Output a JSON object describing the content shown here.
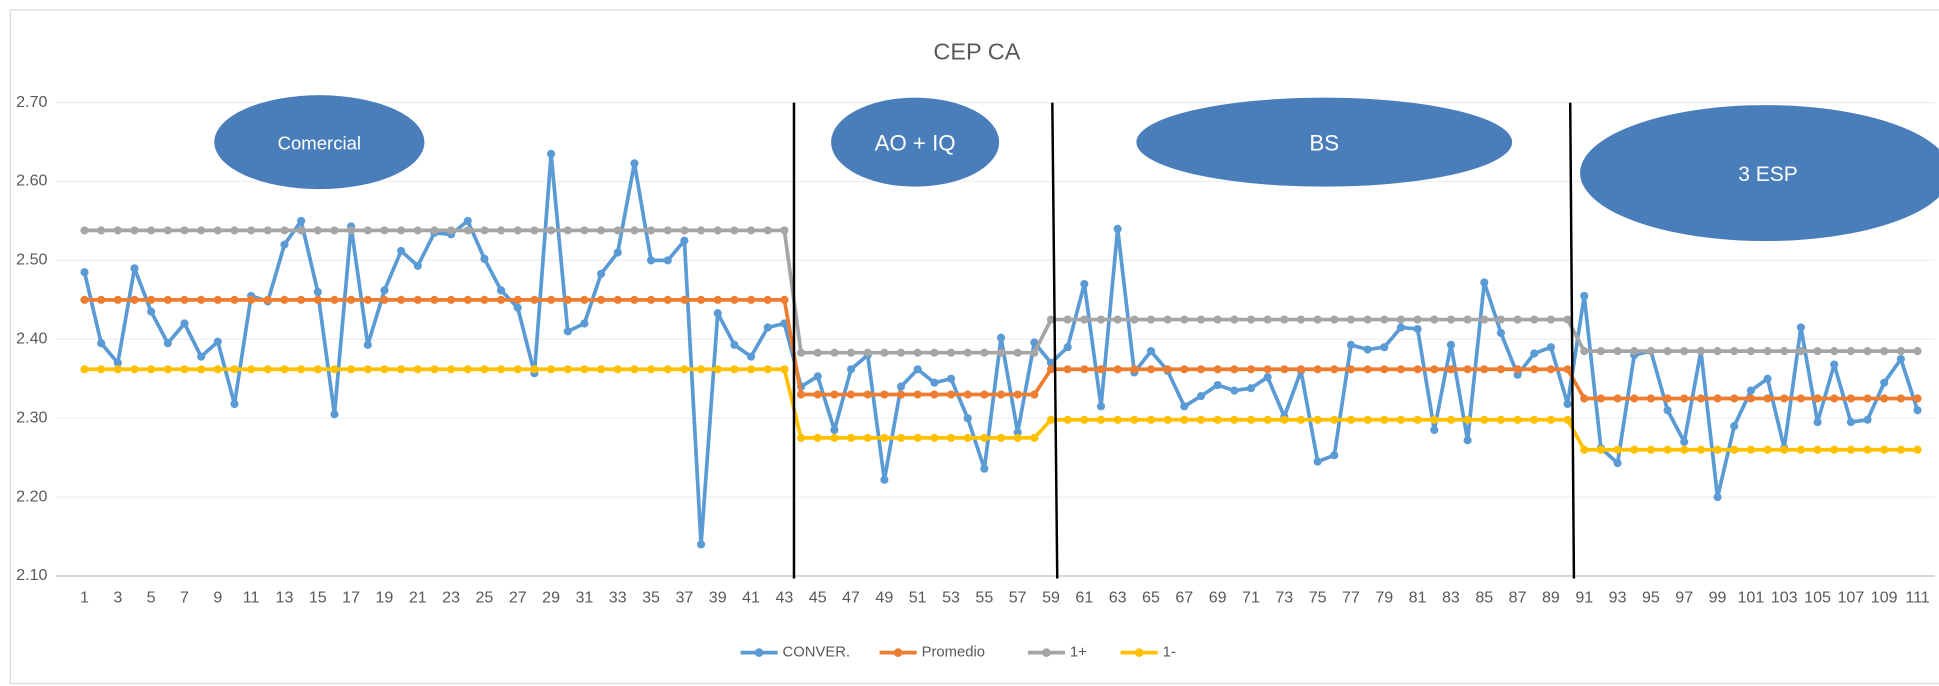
{
  "chart_data": {
    "type": "line",
    "title": "CEP CA",
    "categories": [
      1,
      null,
      3,
      null,
      5,
      null,
      7,
      null,
      9,
      null,
      11,
      null,
      13,
      null,
      15,
      null,
      17,
      null,
      19,
      null,
      21,
      null,
      23,
      null,
      25,
      null,
      27,
      null,
      29,
      null,
      31,
      null,
      33,
      null,
      35,
      null,
      37,
      null,
      39,
      null,
      41,
      null,
      43,
      null,
      45,
      null,
      47,
      null,
      49,
      null,
      51,
      null,
      53,
      null,
      55,
      null,
      57,
      null,
      59,
      null,
      61,
      null,
      63,
      null,
      65,
      null,
      67,
      null,
      69,
      null,
      71,
      null,
      73,
      null,
      75,
      null,
      77,
      null,
      79,
      null,
      81,
      null,
      83,
      null,
      85,
      null,
      87,
      null,
      89,
      null,
      91,
      null,
      93,
      null,
      95,
      null,
      97,
      null,
      99,
      null,
      101,
      null,
      103,
      null,
      105,
      null,
      107,
      null,
      109,
      null,
      111
    ],
    "series": [
      {
        "name": "CONVER.",
        "color": "#5b9bd5",
        "values": [
          2.485,
          2.395,
          2.37,
          2.49,
          2.435,
          2.395,
          2.42,
          2.378,
          2.397,
          2.318,
          2.455,
          2.448,
          2.52,
          2.55,
          2.46,
          2.305,
          2.543,
          2.393,
          2.462,
          2.512,
          2.493,
          2.535,
          2.533,
          2.55,
          2.502,
          2.462,
          2.44,
          2.357,
          2.635,
          2.41,
          2.42,
          2.483,
          2.51,
          2.623,
          2.5,
          2.5,
          2.525,
          2.14,
          2.433,
          2.393,
          2.378,
          2.415,
          2.42,
          2.34,
          2.353,
          2.285,
          2.362,
          2.38,
          2.222,
          2.34,
          2.362,
          2.345,
          2.35,
          2.3,
          2.236,
          2.402,
          2.282,
          2.396,
          2.37,
          2.39,
          2.47,
          2.315,
          2.54,
          2.358,
          2.385,
          2.36,
          2.315,
          2.328,
          2.342,
          2.335,
          2.338,
          2.352,
          2.302,
          2.36,
          2.245,
          2.253,
          2.393,
          2.387,
          2.39,
          2.415,
          2.413,
          2.285,
          2.393,
          2.272,
          2.472,
          2.408,
          2.355,
          2.382,
          2.39,
          2.318,
          2.455,
          2.262,
          2.243,
          2.38,
          2.385,
          2.31,
          2.27,
          2.385,
          2.2,
          2.29,
          2.335,
          2.35,
          2.262,
          2.415,
          2.295,
          2.368,
          2.295,
          2.298,
          2.345,
          2.375,
          2.31
        ]
      },
      {
        "name": "Promedio",
        "color": "#ed7d31",
        "values": [
          2.45,
          2.45,
          2.45,
          2.45,
          2.45,
          2.45,
          2.45,
          2.45,
          2.45,
          2.45,
          2.45,
          2.45,
          2.45,
          2.45,
          2.45,
          2.45,
          2.45,
          2.45,
          2.45,
          2.45,
          2.45,
          2.45,
          2.45,
          2.45,
          2.45,
          2.45,
          2.45,
          2.45,
          2.45,
          2.45,
          2.45,
          2.45,
          2.45,
          2.45,
          2.45,
          2.45,
          2.45,
          2.45,
          2.45,
          2.45,
          2.45,
          2.45,
          2.45,
          2.33,
          2.33,
          2.33,
          2.33,
          2.33,
          2.33,
          2.33,
          2.33,
          2.33,
          2.33,
          2.33,
          2.33,
          2.33,
          2.33,
          2.33,
          2.362,
          2.362,
          2.362,
          2.362,
          2.362,
          2.362,
          2.362,
          2.362,
          2.362,
          2.362,
          2.362,
          2.362,
          2.362,
          2.362,
          2.362,
          2.362,
          2.362,
          2.362,
          2.362,
          2.362,
          2.362,
          2.362,
          2.362,
          2.362,
          2.362,
          2.362,
          2.362,
          2.362,
          2.362,
          2.362,
          2.362,
          2.362,
          2.325,
          2.325,
          2.325,
          2.325,
          2.325,
          2.325,
          2.325,
          2.325,
          2.325,
          2.325,
          2.325,
          2.325,
          2.325,
          2.325,
          2.325,
          2.325,
          2.325,
          2.325,
          2.325,
          2.325,
          2.325
        ]
      },
      {
        "name": "1+",
        "color": "#a5a5a5",
        "values": [
          2.538,
          2.538,
          2.538,
          2.538,
          2.538,
          2.538,
          2.538,
          2.538,
          2.538,
          2.538,
          2.538,
          2.538,
          2.538,
          2.538,
          2.538,
          2.538,
          2.538,
          2.538,
          2.538,
          2.538,
          2.538,
          2.538,
          2.538,
          2.538,
          2.538,
          2.538,
          2.538,
          2.538,
          2.538,
          2.538,
          2.538,
          2.538,
          2.538,
          2.538,
          2.538,
          2.538,
          2.538,
          2.538,
          2.538,
          2.538,
          2.538,
          2.538,
          2.538,
          2.383,
          2.383,
          2.383,
          2.383,
          2.383,
          2.383,
          2.383,
          2.383,
          2.383,
          2.383,
          2.383,
          2.383,
          2.383,
          2.383,
          2.383,
          2.425,
          2.425,
          2.425,
          2.425,
          2.425,
          2.425,
          2.425,
          2.425,
          2.425,
          2.425,
          2.425,
          2.425,
          2.425,
          2.425,
          2.425,
          2.425,
          2.425,
          2.425,
          2.425,
          2.425,
          2.425,
          2.425,
          2.425,
          2.425,
          2.425,
          2.425,
          2.425,
          2.425,
          2.425,
          2.425,
          2.425,
          2.425,
          2.385,
          2.385,
          2.385,
          2.385,
          2.385,
          2.385,
          2.385,
          2.385,
          2.385,
          2.385,
          2.385,
          2.385,
          2.385,
          2.385,
          2.385,
          2.385,
          2.385,
          2.385,
          2.385,
          2.385,
          2.385
        ]
      },
      {
        "name": "1-",
        "color": "#ffc000",
        "values": [
          2.362,
          2.362,
          2.362,
          2.362,
          2.362,
          2.362,
          2.362,
          2.362,
          2.362,
          2.362,
          2.362,
          2.362,
          2.362,
          2.362,
          2.362,
          2.362,
          2.362,
          2.362,
          2.362,
          2.362,
          2.362,
          2.362,
          2.362,
          2.362,
          2.362,
          2.362,
          2.362,
          2.362,
          2.362,
          2.362,
          2.362,
          2.362,
          2.362,
          2.362,
          2.362,
          2.362,
          2.362,
          2.362,
          2.362,
          2.362,
          2.362,
          2.362,
          2.362,
          2.275,
          2.275,
          2.275,
          2.275,
          2.275,
          2.275,
          2.275,
          2.275,
          2.275,
          2.275,
          2.275,
          2.275,
          2.275,
          2.275,
          2.275,
          2.298,
          2.298,
          2.298,
          2.298,
          2.298,
          2.298,
          2.298,
          2.298,
          2.298,
          2.298,
          2.298,
          2.298,
          2.298,
          2.298,
          2.298,
          2.298,
          2.298,
          2.298,
          2.298,
          2.298,
          2.298,
          2.298,
          2.298,
          2.298,
          2.298,
          2.298,
          2.298,
          2.298,
          2.298,
          2.298,
          2.298,
          2.298,
          2.26,
          2.26,
          2.26,
          2.26,
          2.26,
          2.26,
          2.26,
          2.26,
          2.26,
          2.26,
          2.26,
          2.26,
          2.26,
          2.26,
          2.26,
          2.26,
          2.26,
          2.26,
          2.26,
          2.26,
          2.26
        ]
      }
    ],
    "ylim": [
      2.1,
      2.7
    ],
    "yticks": [
      {
        "value": 2.1,
        "label": "2.10"
      },
      {
        "value": 2.2,
        "label": "2.20"
      },
      {
        "value": 2.3,
        "label": "2.30"
      },
      {
        "value": 2.4,
        "label": "2.40"
      },
      {
        "value": 2.5,
        "label": "2.50"
      },
      {
        "value": 2.6,
        "label": "2.60"
      },
      {
        "value": 2.7,
        "label": "2.70"
      }
    ],
    "grid": true,
    "legend": "bottom",
    "annotations": [
      "Comercial",
      "AO + IQ",
      "BS",
      "3 ESP"
    ]
  }
}
